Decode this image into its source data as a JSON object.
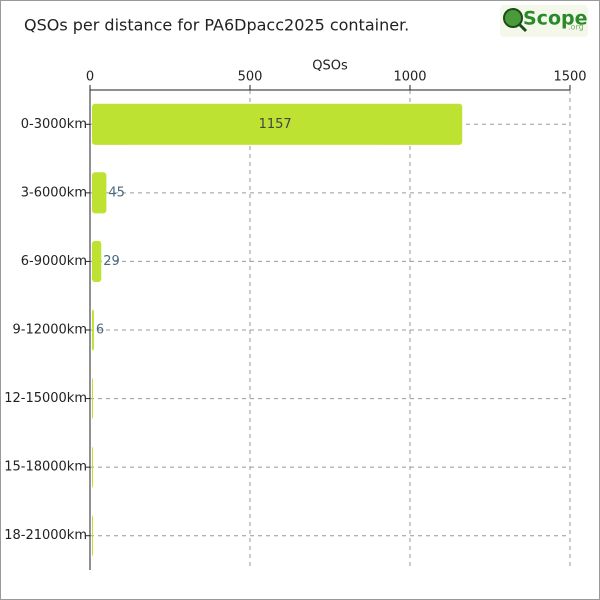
{
  "chart_data": {
    "type": "bar",
    "orientation": "horizontal",
    "title": "QSOs per distance for PA6Dpacc2025 container.",
    "x_label": "QSOs",
    "categories": [
      "0-3000km",
      "3-6000km",
      "6-9000km",
      "9-12000km",
      "12-15000km",
      "15-18000km",
      "18-21000km"
    ],
    "values": [
      1157,
      45,
      29,
      6,
      0,
      0,
      0
    ],
    "color": "#bde232",
    "xlim": [
      0,
      1500
    ],
    "xticks": [
      0,
      500,
      1000,
      1500
    ],
    "grid": true
  },
  "logo": {
    "name": "Scope",
    "domain": ".org"
  }
}
